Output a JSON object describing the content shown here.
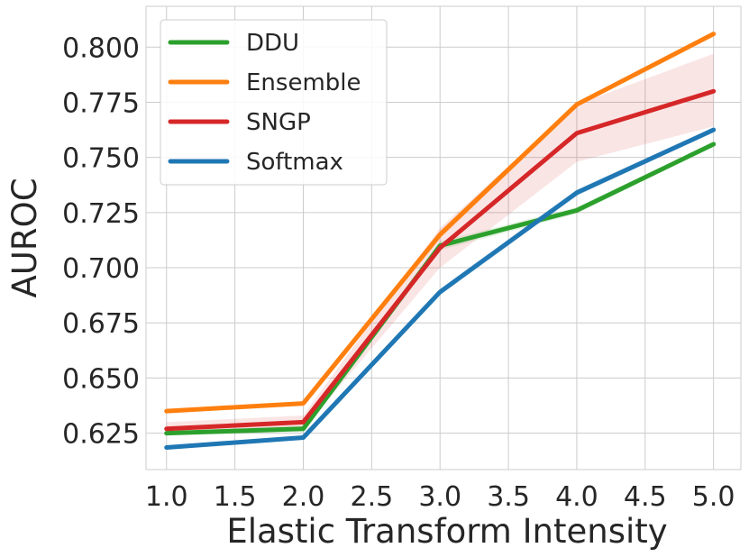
{
  "chart_data": {
    "type": "line",
    "title": "",
    "xlabel": "Elastic Transform Intensity",
    "ylabel": "AUROC",
    "x": [
      1.0,
      2.0,
      3.0,
      4.0,
      5.0
    ],
    "xlim": [
      0.85,
      5.2
    ],
    "ylim": [
      0.6085,
      0.8185
    ],
    "xticks": [
      1.0,
      1.5,
      2.0,
      2.5,
      3.0,
      3.5,
      4.0,
      4.5,
      5.0
    ],
    "xtick_labels": [
      "1.0",
      "1.5",
      "2.0",
      "2.5",
      "3.0",
      "3.5",
      "4.0",
      "4.5",
      "5.0"
    ],
    "yticks": [
      0.625,
      0.65,
      0.675,
      0.7,
      0.725,
      0.75,
      0.775,
      0.8
    ],
    "ytick_labels": [
      "0.625",
      "0.650",
      "0.675",
      "0.700",
      "0.725",
      "0.750",
      "0.775",
      "0.800"
    ],
    "grid": true,
    "legend_position": "top-left",
    "series": [
      {
        "name": "DDU",
        "color": "#2ca02c",
        "values": [
          0.625,
          0.627,
          0.71,
          0.726,
          0.756
        ],
        "lower": [
          0.624,
          0.6255,
          0.708,
          0.7245,
          0.755
        ],
        "upper": [
          0.626,
          0.6285,
          0.712,
          0.7275,
          0.757
        ]
      },
      {
        "name": "Ensemble",
        "color": "#ff7f0e",
        "values": [
          0.635,
          0.6385,
          0.715,
          0.774,
          0.806
        ],
        "lower": [
          0.634,
          0.6375,
          0.713,
          0.773,
          0.805
        ],
        "upper": [
          0.636,
          0.6395,
          0.717,
          0.775,
          0.807
        ]
      },
      {
        "name": "SNGP",
        "color": "#d62728",
        "values": [
          0.627,
          0.63,
          0.709,
          0.761,
          0.78
        ],
        "lower": [
          0.624,
          0.627,
          0.7,
          0.748,
          0.764
        ],
        "upper": [
          0.63,
          0.633,
          0.718,
          0.774,
          0.797
        ]
      },
      {
        "name": "Softmax",
        "color": "#1f77b4",
        "values": [
          0.6185,
          0.623,
          0.689,
          0.734,
          0.7625
        ],
        "lower": [
          0.6175,
          0.622,
          0.6875,
          0.7325,
          0.7615
        ],
        "upper": [
          0.6195,
          0.624,
          0.6905,
          0.7355,
          0.7635
        ]
      }
    ]
  }
}
